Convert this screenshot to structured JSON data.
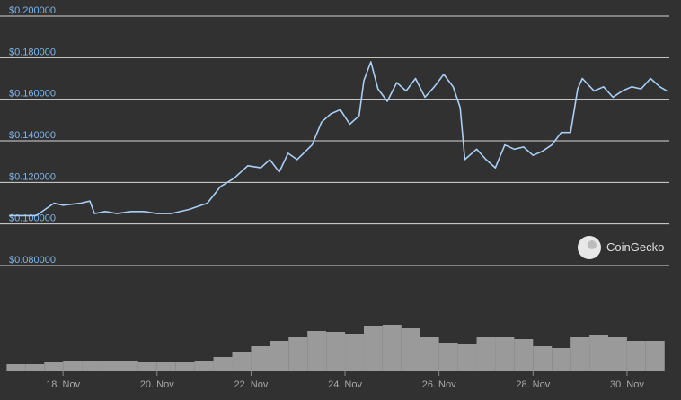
{
  "chart_data": {
    "type": "line",
    "watermark": "CoinGecko",
    "price": {
      "color": "#a9cff5",
      "x": [
        16.85,
        17.43,
        17.81,
        18.0,
        18.38,
        18.57,
        18.67,
        18.9,
        19.15,
        19.45,
        19.72,
        20.0,
        20.3,
        20.68,
        21.07,
        21.35,
        21.64,
        21.93,
        22.21,
        22.4,
        22.6,
        22.79,
        22.98,
        23.3,
        23.5,
        23.7,
        23.9,
        24.1,
        24.3,
        24.4,
        24.55,
        24.7,
        24.9,
        25.1,
        25.3,
        25.5,
        25.7,
        25.9,
        26.1,
        26.3,
        26.45,
        26.55,
        26.8,
        27.0,
        27.2,
        27.4,
        27.6,
        27.8,
        28.0,
        28.2,
        28.4,
        28.6,
        28.8,
        28.95,
        29.05,
        29.3,
        29.5,
        29.7,
        29.9,
        30.1,
        30.3,
        30.5,
        30.7,
        30.85
      ],
      "values": [
        0.104,
        0.104,
        0.11,
        0.109,
        0.11,
        0.111,
        0.105,
        0.106,
        0.105,
        0.106,
        0.106,
        0.105,
        0.105,
        0.107,
        0.11,
        0.118,
        0.122,
        0.128,
        0.127,
        0.131,
        0.125,
        0.134,
        0.131,
        0.138,
        0.149,
        0.153,
        0.155,
        0.148,
        0.152,
        0.169,
        0.178,
        0.165,
        0.159,
        0.168,
        0.164,
        0.17,
        0.161,
        0.166,
        0.172,
        0.166,
        0.156,
        0.131,
        0.136,
        0.131,
        0.127,
        0.138,
        0.136,
        0.137,
        0.133,
        0.135,
        0.138,
        0.144,
        0.144,
        0.165,
        0.17,
        0.164,
        0.166,
        0.161,
        0.164,
        0.166,
        0.165,
        0.17,
        0.166,
        0.164
      ]
    },
    "volume": {
      "color": "#9a9a9a",
      "x": [
        17.0,
        17.4,
        17.8,
        18.2,
        18.6,
        19.0,
        19.4,
        19.8,
        20.2,
        20.6,
        21.0,
        21.4,
        21.8,
        22.2,
        22.6,
        23.0,
        23.4,
        23.8,
        24.2,
        24.6,
        25.0,
        25.4,
        25.8,
        26.2,
        26.6,
        27.0,
        27.4,
        27.8,
        28.2,
        28.6,
        29.0,
        29.4,
        29.8,
        30.2,
        30.6
      ],
      "values": [
        8,
        8,
        10,
        12,
        12,
        12,
        11,
        10,
        10,
        10,
        12,
        16,
        22,
        28,
        34,
        38,
        45,
        44,
        42,
        50,
        52,
        48,
        38,
        32,
        30,
        38,
        38,
        36,
        28,
        26,
        38,
        40,
        38,
        34,
        34
      ],
      "y2lim": [
        0,
        60
      ]
    },
    "xlim": [
      16.85,
      30.9
    ],
    "xticks": [
      {
        "value": 18,
        "label": "18. Nov"
      },
      {
        "value": 20,
        "label": "20. Nov"
      },
      {
        "value": 22,
        "label": "22. Nov"
      },
      {
        "value": 24,
        "label": "24. Nov"
      },
      {
        "value": 26,
        "label": "26. Nov"
      },
      {
        "value": 28,
        "label": "28. Nov"
      },
      {
        "value": 30,
        "label": "30. Nov"
      }
    ],
    "ylim": [
      0.08,
      0.2
    ],
    "yticks": [
      {
        "value": 0.08,
        "label": "$0.080000"
      },
      {
        "value": 0.1,
        "label": "$0.100000"
      },
      {
        "value": 0.12,
        "label": "$0.120000"
      },
      {
        "value": 0.14,
        "label": "$0.140000"
      },
      {
        "value": 0.16,
        "label": "$0.160000"
      },
      {
        "value": 0.18,
        "label": "$0.180000"
      },
      {
        "value": 0.2,
        "label": "$0.200000"
      }
    ],
    "grid": true
  }
}
